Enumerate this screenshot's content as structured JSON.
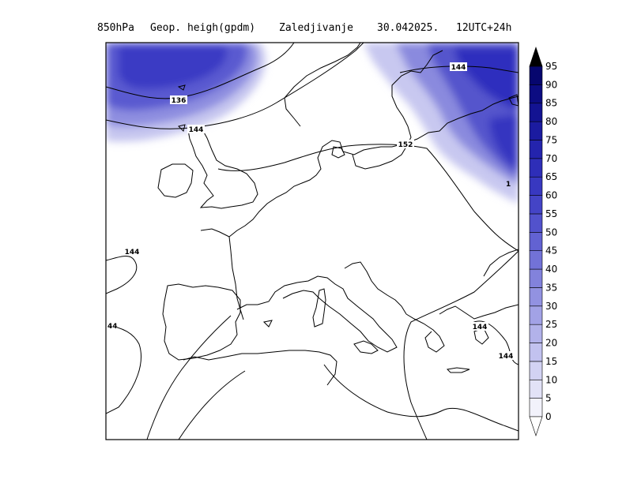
{
  "header": {
    "level": "850hPa",
    "field": "Geop. heigh(gpdm)",
    "overlay": "Zaledjivanje",
    "date": "30.042025.",
    "time": "12UTC+24h"
  },
  "colorbar": {
    "levels": [
      "0",
      "5",
      "10",
      "15",
      "20",
      "25",
      "30",
      "35",
      "40",
      "45",
      "50",
      "55",
      "60",
      "65",
      "70",
      "75",
      "80",
      "85",
      "90",
      "95"
    ],
    "colors": [
      "#f2f2fb",
      "#e2e2f7",
      "#d2d2f3",
      "#c2c2ef",
      "#b2b2ea",
      "#a2a2e6",
      "#9292e1",
      "#8282dc",
      "#7272d7",
      "#6262d2",
      "#5252cc",
      "#4444c6",
      "#3838c0",
      "#2e2eb8",
      "#2424ad",
      "#1b1ba0",
      "#131392",
      "#0c0c82",
      "#06066e",
      "#000000"
    ]
  },
  "isohypse_labels": [
    "136",
    "144",
    "144",
    "152",
    "144",
    "44",
    "144",
    "144",
    "144",
    "1"
  ],
  "colors": {
    "frame": "#000000",
    "icing": "#4b4bd0",
    "background": "#ffffff"
  }
}
